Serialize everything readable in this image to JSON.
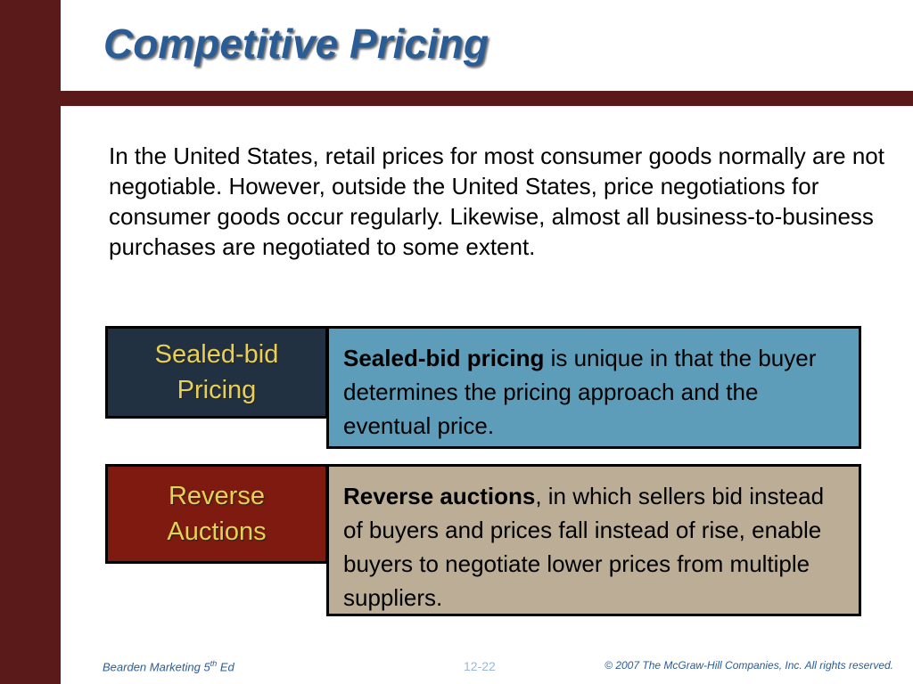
{
  "slide": {
    "title": "Competitive Pricing",
    "intro": "In the United States, retail prices for most consumer goods normally are not negotiable. However, outside the United States, price negotiations for consumer goods occur regularly. Likewise, almost all business-to-business purchases are negotiated to some extent."
  },
  "rows": [
    {
      "label_line1": "Sealed-bid",
      "label_line2": "Pricing",
      "term": "Sealed-bid pricing",
      "text": " is unique in that the buyer determines the pricing approach and the eventual price."
    },
    {
      "label_line1": "Reverse",
      "label_line2": "Auctions",
      "term": "Reverse auctions",
      "text": ", in which sellers bid instead of buyers and prices fall instead of rise, enable buyers to negotiate lower prices from multiple suppliers."
    }
  ],
  "footer": {
    "left_prefix": "Bearden Marketing 5",
    "left_sup": "th",
    "left_suffix": " Ed",
    "page": "12-22",
    "copyright": "© 2007  The McGraw-Hill Companies, Inc.  All rights reserved."
  },
  "colors": {
    "frame": "#5a1a1a",
    "title": "#2a5c96",
    "label_text": "#e8cf55",
    "label1_bg": "#223142",
    "label2_bg": "#7e1a10",
    "desc1_bg": "#5d9db9",
    "desc2_bg": "#bcae96"
  }
}
